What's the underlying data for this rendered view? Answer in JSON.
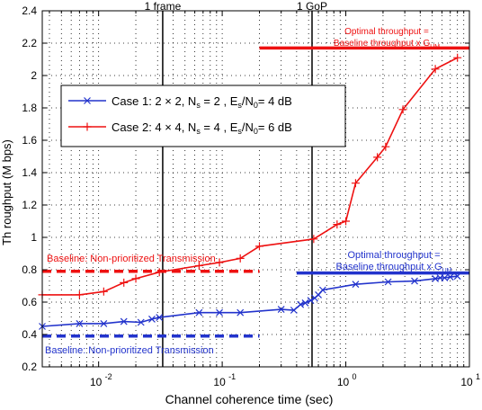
{
  "chart_data": {
    "type": "line",
    "xscale": "log",
    "xlim": [
      0.0035,
      10
    ],
    "ylim": [
      0.2,
      2.4
    ],
    "xlabel": "Channel coherence time (sec)",
    "ylabel": "Th roughput (M bps)",
    "xticks": [
      {
        "value": 0.01,
        "label": "10",
        "exp": "-2"
      },
      {
        "value": 0.1,
        "label": "10",
        "exp": "-1"
      },
      {
        "value": 1,
        "label": "10",
        "exp": "0"
      },
      {
        "value": 10,
        "label": "10",
        "exp": "1"
      }
    ],
    "yticks": [
      {
        "value": 0.2,
        "label": "0.2"
      },
      {
        "value": 0.4,
        "label": "0.4"
      },
      {
        "value": 0.6,
        "label": "0.6"
      },
      {
        "value": 0.8,
        "label": "0.8"
      },
      {
        "value": 1.0,
        "label": "1"
      },
      {
        "value": 1.2,
        "label": "1.2"
      },
      {
        "value": 1.4,
        "label": "1.4"
      },
      {
        "value": 1.6,
        "label": "1.6"
      },
      {
        "value": 1.8,
        "label": "1.8"
      },
      {
        "value": 2.0,
        "label": "2"
      },
      {
        "value": 2.2,
        "label": "2.2"
      },
      {
        "value": 2.4,
        "label": "2.4"
      }
    ],
    "grid": true,
    "legend_position": "upper-left",
    "series": [
      {
        "name": "Case 1: 2 × 2, N",
        "legend_parts": {
          "case": "Case 1:",
          "dims": "2 × 2,",
          "ns": "N",
          "ns_sub": "s",
          "ns_val": "= 2 ,",
          "es": "E",
          "es_sub": "s",
          "es_rest": "/N",
          "n0_sub": "0",
          "es_val": "= 4 dB"
        },
        "color": "#2233cc",
        "marker": "x",
        "x": [
          0.0035,
          0.007,
          0.011,
          0.016,
          0.022,
          0.027,
          0.031,
          0.065,
          0.095,
          0.14,
          0.3,
          0.38,
          0.43,
          0.47,
          0.52,
          0.56,
          0.6,
          0.65,
          1.2,
          2.2,
          3.6,
          5.3,
          5.8,
          6.3,
          7.0,
          8.0
        ],
        "y": [
          0.45,
          0.467,
          0.467,
          0.48,
          0.475,
          0.495,
          0.505,
          0.535,
          0.535,
          0.535,
          0.555,
          0.55,
          0.585,
          0.595,
          0.61,
          0.625,
          0.645,
          0.675,
          0.71,
          0.725,
          0.73,
          0.745,
          0.75,
          0.75,
          0.755,
          0.76
        ]
      },
      {
        "name": "Case 2: 4 × 4, N",
        "legend_parts": {
          "case": "Case 2:",
          "dims": "4 × 4,",
          "ns": "N",
          "ns_sub": "s",
          "ns_val": "= 4 ,",
          "es": "E",
          "es_sub": "s",
          "es_rest": "/N",
          "n0_sub": "0",
          "es_val": "= 6 dB"
        },
        "color": "#ee1111",
        "marker": "+",
        "x": [
          0.0035,
          0.007,
          0.011,
          0.016,
          0.02,
          0.031,
          0.065,
          0.095,
          0.14,
          0.2,
          0.55,
          0.85,
          1.0,
          1.2,
          1.8,
          2.1,
          2.9,
          5.3,
          8.0
        ],
        "y": [
          0.645,
          0.645,
          0.665,
          0.72,
          0.745,
          0.785,
          0.825,
          0.845,
          0.87,
          0.945,
          0.99,
          1.08,
          1.1,
          1.335,
          1.495,
          1.56,
          1.79,
          2.04,
          2.11
        ]
      }
    ],
    "reference_lines": [
      {
        "kind": "vertical",
        "x": 0.033,
        "label": "1 frame",
        "color": "#000000"
      },
      {
        "kind": "vertical",
        "x": 0.533,
        "label": "1 GoP",
        "color": "#000000"
      },
      {
        "kind": "hline",
        "y": 0.79,
        "x_from": 0.0035,
        "x_to": 0.2,
        "dash": true,
        "color": "#ee1111"
      },
      {
        "kind": "hline",
        "y": 0.39,
        "x_from": 0.0035,
        "x_to": 0.2,
        "dash": true,
        "color": "#2233cc"
      },
      {
        "kind": "hline",
        "y": 2.17,
        "x_from": 0.2,
        "x_to": 10,
        "dash": false,
        "color": "#ee1111"
      },
      {
        "kind": "hline",
        "y": 0.78,
        "x_from": 0.4,
        "x_to": 10,
        "dash": false,
        "color": "#2233cc"
      }
    ],
    "annotations": [
      {
        "id": "red_baseline",
        "text": "Baseline: Non-prioritized Transmission",
        "color": "#ee1111"
      },
      {
        "id": "blue_baseline",
        "text": "Baseline: Non-prioritized Transmission",
        "color": "#2233cc"
      },
      {
        "id": "red_opt_line1",
        "text": "Optimal throughput =",
        "color": "#ee1111"
      },
      {
        "id": "red_opt_line2",
        "text": "Baseline throughput  x G",
        "sub": "UM",
        "color": "#ee1111"
      },
      {
        "id": "blue_opt_line1",
        "text": "Optimal throughput =",
        "color": "#2233cc"
      },
      {
        "id": "blue_opt_line2",
        "text": "Baseline throughput  x G",
        "sub": "UM",
        "color": "#2233cc"
      }
    ]
  }
}
